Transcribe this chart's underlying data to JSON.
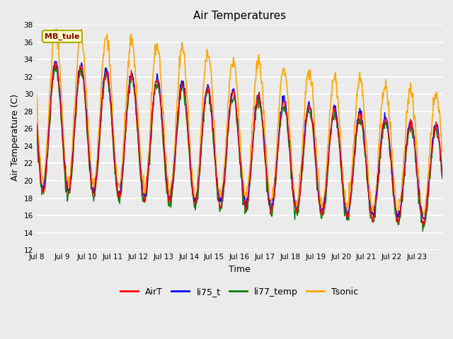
{
  "title": "Air Temperatures",
  "xlabel": "Time",
  "ylabel": "Air Temperature (C)",
  "ylim": [
    12,
    38
  ],
  "yticks": [
    12,
    14,
    16,
    18,
    20,
    22,
    24,
    26,
    28,
    30,
    32,
    34,
    36,
    38
  ],
  "plot_bg_color": "#ebebeb",
  "series": {
    "AirT": {
      "color": "red",
      "lw": 1.0
    },
    "li75_t": {
      "color": "blue",
      "lw": 1.0
    },
    "li77_temp": {
      "color": "green",
      "lw": 1.0
    },
    "Tsonic": {
      "color": "orange",
      "lw": 1.2
    }
  },
  "site_label": "MB_tule",
  "site_label_color": "#8b0000",
  "site_label_bg": "#ffffcc",
  "xtick_labels": [
    "Jul 8",
    "Jul 9",
    "Jul 10",
    "Jul 11",
    "Jul 12",
    "Jul 13",
    "Jul 14",
    "Jul 15",
    "Jul 16",
    "Jul 17",
    "Jul 18",
    "Jul 19",
    "Jul 20",
    "Jul 21",
    "Jul 22",
    "Jul 23"
  ],
  "n_days": 16,
  "pts_per_day": 48
}
